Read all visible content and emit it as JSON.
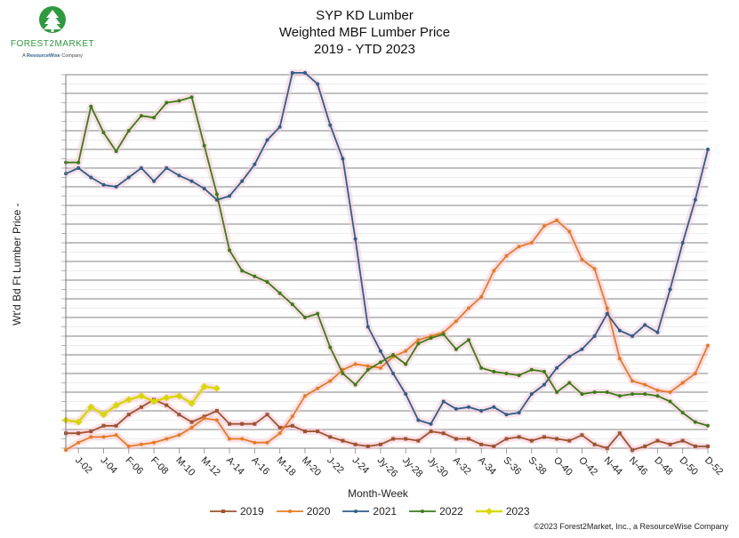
{
  "logo": {
    "brand": "FOREST2MARKET",
    "tagline_prefix": "A",
    "tagline_brand": "ResourceWise",
    "tagline_suffix": "Company",
    "icon": "tree-icon",
    "color": "#2e9b3e"
  },
  "footer": {
    "copyright": "©2023 Forest2Market, Inc., a ResourceWise Company"
  },
  "chart_data": {
    "type": "line",
    "title": [
      "SYP KD Lumber",
      "Weighted MBF Lumber Price",
      "2019 - YTD 2023"
    ],
    "xlabel": "Month-Week",
    "ylabel": "Wt'd Bd Ft Lumber Price -",
    "grid": true,
    "ylim": [
      0,
      20
    ],
    "y_tick_labels_visible": false,
    "legend_position": "bottom",
    "x_tick_labels": [
      "J-02",
      "J-04",
      "F-06",
      "F-08",
      "M-10",
      "M-12",
      "A-14",
      "A-16",
      "M-18",
      "M-20",
      "J-22",
      "J-24",
      "Jy-26",
      "Jy-28",
      "Jy-30",
      "A-32",
      "A-34",
      "S-36",
      "S-38",
      "O-40",
      "O-42",
      "N-44",
      "N-46",
      "D-48",
      "D-50",
      "D-52"
    ],
    "series": [
      {
        "name": "2019",
        "color": "#a0522d",
        "marker": "square",
        "values": [
          0.8,
          0.8,
          0.9,
          1.2,
          1.2,
          1.8,
          2.2,
          2.6,
          2.3,
          1.8,
          1.4,
          1.7,
          2.0,
          1.3,
          1.3,
          1.3,
          1.8,
          1.1,
          1.2,
          0.9,
          0.9,
          0.6,
          0.4,
          0.2,
          0.1,
          0.2,
          0.5,
          0.5,
          0.4,
          0.9,
          0.8,
          0.5,
          0.5,
          0.2,
          0.1,
          0.5,
          0.6,
          0.4,
          0.6,
          0.5,
          0.4,
          0.7,
          0.2,
          0.0,
          0.8,
          -0.1,
          0.1,
          0.4,
          0.2,
          0.4,
          0.1,
          0.1
        ]
      },
      {
        "name": "2020",
        "color": "#e87b1e",
        "marker": "dot",
        "values": [
          -0.1,
          0.3,
          0.6,
          0.6,
          0.7,
          0.1,
          0.2,
          0.3,
          0.5,
          0.7,
          1.1,
          1.6,
          1.5,
          0.5,
          0.5,
          0.3,
          0.3,
          0.8,
          1.7,
          2.8,
          3.2,
          3.6,
          4.2,
          4.5,
          4.4,
          4.3,
          4.9,
          5.2,
          5.8,
          6.0,
          6.2,
          6.8,
          7.5,
          8.1,
          9.5,
          10.3,
          10.8,
          11.0,
          11.9,
          12.2,
          11.6,
          10.1,
          9.6,
          7.5,
          4.8,
          3.6,
          3.4,
          3.1,
          3.0,
          3.5,
          4.0,
          5.5
        ]
      },
      {
        "name": "2021",
        "color": "#2e5f8a",
        "marker": "dot",
        "values": [
          14.7,
          15.0,
          14.5,
          14.1,
          14.0,
          14.5,
          15.0,
          14.3,
          15.0,
          14.6,
          14.3,
          13.9,
          13.3,
          13.5,
          14.3,
          15.2,
          16.5,
          17.2,
          20.1,
          20.1,
          19.5,
          17.3,
          15.5,
          11.2,
          6.5,
          5.2,
          4.0,
          2.9,
          1.5,
          1.3,
          2.5,
          2.1,
          2.2,
          2.0,
          2.2,
          1.8,
          1.9,
          2.9,
          3.4,
          4.3,
          4.9,
          5.3,
          6.0,
          7.2,
          6.3,
          6.0,
          6.6,
          6.2,
          8.5,
          11.0,
          13.3,
          16.0
        ]
      },
      {
        "name": "2022",
        "color": "#3c7d16",
        "marker": "dot",
        "values": [
          15.3,
          15.3,
          18.3,
          16.9,
          15.9,
          17.0,
          17.8,
          17.7,
          18.5,
          18.6,
          18.8,
          16.2,
          13.6,
          10.6,
          9.5,
          9.2,
          8.9,
          8.3,
          7.7,
          7.0,
          7.2,
          5.4,
          4.0,
          3.4,
          4.2,
          4.6,
          5.0,
          4.5,
          5.6,
          5.9,
          6.1,
          5.3,
          5.8,
          4.3,
          4.1,
          4.0,
          3.9,
          4.2,
          4.1,
          3.0,
          3.5,
          2.9,
          3.0,
          3.0,
          2.8,
          2.9,
          2.9,
          2.8,
          2.5,
          1.9,
          1.4,
          1.2
        ]
      },
      {
        "name": "2023",
        "color": "#d8d800",
        "marker": "diamond",
        "values": [
          1.5,
          1.4,
          2.2,
          1.8,
          2.3,
          2.6,
          2.8,
          2.5,
          2.7,
          2.8,
          2.4,
          3.3,
          3.2
        ]
      }
    ]
  }
}
